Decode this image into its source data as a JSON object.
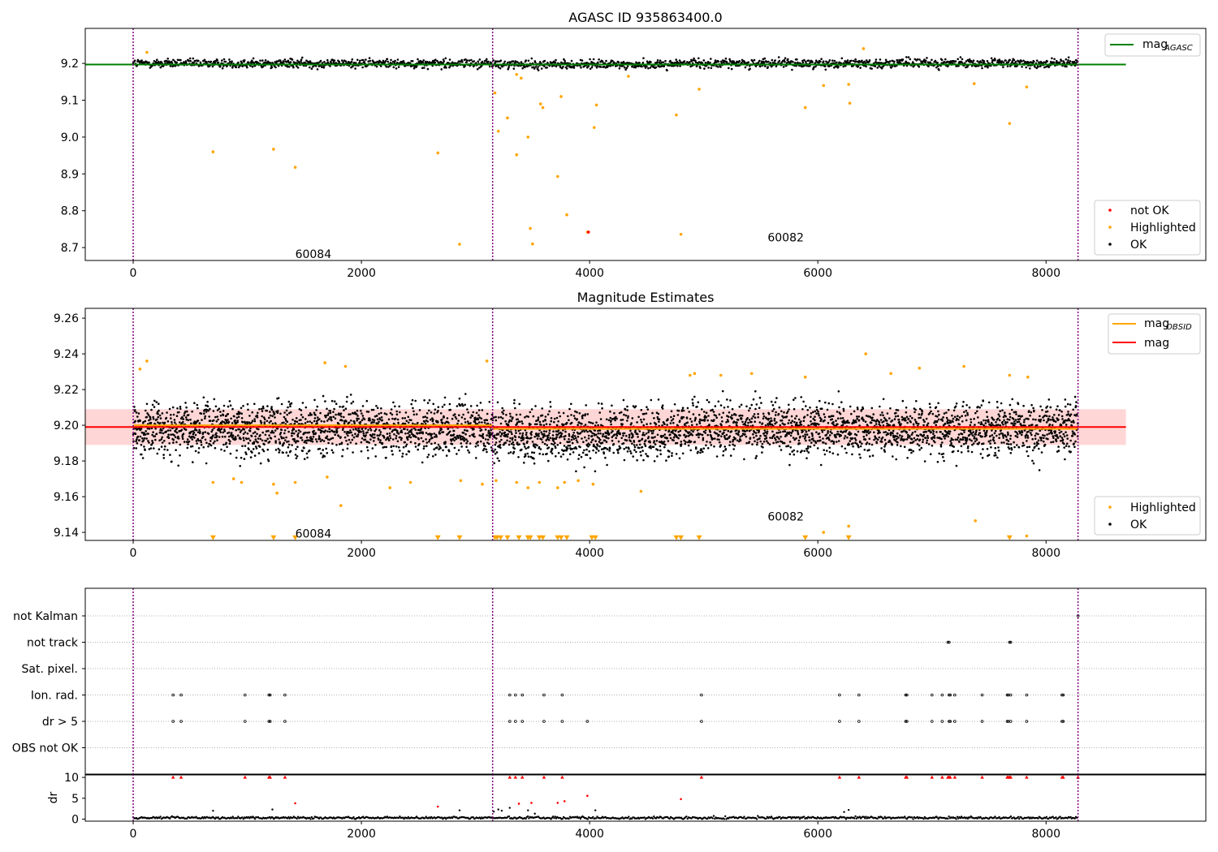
{
  "chart_data": [
    {
      "type": "scatter",
      "title": "AGASC ID 935863400.0",
      "xlabel": "",
      "ylabel": "",
      "xlim": [
        -420,
        9400
      ],
      "ylim": [
        8.665,
        9.295
      ],
      "xticks": [
        0,
        2000,
        4000,
        6000,
        8000
      ],
      "yticks": [
        8.7,
        8.8,
        8.9,
        9.0,
        9.1,
        9.2
      ],
      "ytick_labels": [
        "8.7",
        "8.8",
        "8.9",
        "9.0",
        "9.1",
        "9.2"
      ],
      "grid": false,
      "vlines": [
        0,
        3150,
        8280
      ],
      "annotations": [
        {
          "text": "60084",
          "x": 1420,
          "y": 8.68
        },
        {
          "text": "60082",
          "x": 5560,
          "y": 8.726
        }
      ],
      "reference_line": {
        "name": "mag",
        "subscript": "AGASC",
        "y": 9.197,
        "x": [
          -420,
          8700
        ],
        "color": "#008000"
      },
      "ok_band": {
        "center": 9.2,
        "spread": 0.011,
        "x": [
          0,
          8280
        ]
      },
      "highlighted": {
        "x": [
          120,
          700,
          1230,
          1420,
          2670,
          2860,
          3170,
          3200,
          3280,
          3360,
          3460,
          3480,
          3500,
          3570,
          3590,
          3720,
          3750,
          3800,
          3980,
          4040,
          4060,
          4760,
          4800,
          4960,
          5890,
          6050,
          6270,
          6280,
          7680,
          7830,
          7370,
          3360,
          3400,
          6400,
          4340
        ],
        "y": [
          9.23,
          8.96,
          8.967,
          8.918,
          8.957,
          8.709,
          9.12,
          9.016,
          9.052,
          8.952,
          9.0,
          8.752,
          8.71,
          9.09,
          9.08,
          8.893,
          9.11,
          8.789,
          8.742,
          9.026,
          9.087,
          9.06,
          8.736,
          9.13,
          9.08,
          9.14,
          9.143,
          9.092,
          9.037,
          9.136,
          9.145,
          9.17,
          9.16,
          9.24,
          9.165
        ]
      },
      "not_ok": {
        "x": [
          3990
        ],
        "y": [
          8.742
        ]
      },
      "legends": [
        {
          "position": "top-right",
          "entries": [
            {
              "label": "mag",
              "subscript": "AGASC",
              "color": "#008000",
              "kind": "line"
            }
          ]
        },
        {
          "position": "bottom-right",
          "entries": [
            {
              "label": "not OK",
              "color": "#ff0000",
              "kind": "dot"
            },
            {
              "label": "Highlighted",
              "color": "#ffa500",
              "kind": "dot"
            },
            {
              "label": "OK",
              "color": "#000000",
              "kind": "dot"
            }
          ]
        }
      ]
    },
    {
      "type": "scatter",
      "title": "Magnitude Estimates",
      "xlabel": "",
      "ylabel": "",
      "xlim": [
        -420,
        9400
      ],
      "ylim": [
        9.1355,
        9.2655
      ],
      "xticks": [
        0,
        2000,
        4000,
        6000,
        8000
      ],
      "yticks": [
        9.14,
        9.16,
        9.18,
        9.2,
        9.22,
        9.24,
        9.26
      ],
      "ytick_labels": [
        "9.14",
        "9.16",
        "9.18",
        "9.20",
        "9.22",
        "9.24",
        "9.26"
      ],
      "grid": false,
      "vlines": [
        0,
        3150,
        8280
      ],
      "annotations": [
        {
          "text": "60084",
          "x": 1420,
          "y": 9.139
        },
        {
          "text": "60082",
          "x": 5560,
          "y": 9.1484
        }
      ],
      "mag_line": {
        "name": "mag",
        "y": 9.199,
        "color": "#ff0000"
      },
      "mag_band": {
        "y": [
          9.189,
          9.209
        ],
        "x": [
          -420,
          8700
        ],
        "color": "#ffd6d6"
      },
      "obsid_segments": [
        {
          "x": [
            0,
            3150
          ],
          "y": 9.2
        },
        {
          "x": [
            3150,
            8280
          ],
          "y": 9.198
        }
      ],
      "ok_band": {
        "center": 9.198,
        "spread": 0.013,
        "x": [
          0,
          8280
        ]
      },
      "highlighted": {
        "x": [
          60,
          120,
          700,
          880,
          1230,
          1260,
          1420,
          1680,
          1820,
          1860,
          2250,
          2430,
          2870,
          3060,
          3100,
          3180,
          3360,
          3460,
          3560,
          3720,
          3780,
          3900,
          4030,
          4450,
          4880,
          4920,
          5150,
          5420,
          5890,
          6050,
          6270,
          6420,
          6640,
          6890,
          7280,
          7380,
          7830,
          7680,
          7840,
          950,
          1700
        ],
        "y": [
          9.2315,
          9.236,
          9.168,
          9.17,
          9.167,
          9.162,
          9.168,
          9.235,
          9.155,
          9.233,
          9.165,
          9.168,
          9.169,
          9.167,
          9.236,
          9.169,
          9.168,
          9.165,
          9.168,
          9.165,
          9.168,
          9.169,
          9.167,
          9.163,
          9.228,
          9.229,
          9.228,
          9.229,
          9.227,
          9.14,
          9.1435,
          9.24,
          9.229,
          9.232,
          9.233,
          9.1465,
          9.138,
          9.228,
          9.227,
          9.168,
          9.171
        ]
      },
      "off_scale_markers": {
        "x": [
          700,
          1230,
          1420,
          2670,
          2860,
          3170,
          3190,
          3220,
          3280,
          3380,
          3460,
          3480,
          3560,
          3590,
          3720,
          3750,
          3800,
          4020,
          4050,
          4760,
          4800,
          4960,
          5890,
          6270,
          7680
        ],
        "y": 9.137
      },
      "legends": [
        {
          "position": "top-right",
          "entries": [
            {
              "label": "mag",
              "subscript": "OBSID",
              "color": "#ffa500",
              "kind": "line"
            },
            {
              "label": "mag",
              "subscript": "",
              "color": "#ff0000",
              "kind": "line"
            }
          ]
        },
        {
          "position": "bottom-right",
          "entries": [
            {
              "label": "Highlighted",
              "color": "#ffa500",
              "kind": "dot"
            },
            {
              "label": "OK",
              "color": "#000000",
              "kind": "dot"
            }
          ]
        }
      ]
    },
    {
      "type": "scatter",
      "title": "",
      "xlabel": "",
      "ylabel": "",
      "xlim": [
        -420,
        9400
      ],
      "categories": [
        "not Kalman",
        "not track",
        "Sat. pixel.",
        "Ion. rad.",
        "dr > 5",
        "OBS not OK"
      ],
      "grid": true,
      "vlines": [
        0,
        3150,
        8280
      ],
      "flags": {
        "not Kalman": [
          8280
        ],
        "not track": [
          7140,
          7150,
          7680,
          7690
        ],
        "Sat. pixel.": [],
        "Ion. rad.": [
          350,
          420,
          980,
          1190,
          1200,
          1330,
          3300,
          3350,
          3410,
          3600,
          3760,
          4980,
          6190,
          6360,
          6770,
          6780,
          7000,
          7090,
          7150,
          7160,
          7200,
          7440,
          7660,
          7670,
          7690,
          7830,
          8140,
          8150
        ],
        "dr > 5": [
          350,
          420,
          980,
          1190,
          1200,
          1330,
          3300,
          3350,
          3410,
          3600,
          3760,
          3980,
          4980,
          6190,
          6360,
          6770,
          6780,
          7000,
          7090,
          7150,
          7160,
          7200,
          7440,
          7660,
          7670,
          7690,
          7830,
          8140,
          8150
        ],
        "OBS not OK": []
      }
    },
    {
      "type": "scatter",
      "title": "",
      "xlabel": "",
      "ylabel": "dr",
      "xlim": [
        -420,
        9400
      ],
      "ylim": [
        -0.5,
        10.8
      ],
      "yticks": [
        0,
        5,
        10
      ],
      "ytick_labels": [
        "0",
        "5",
        "10"
      ],
      "xticks": [
        0,
        2000,
        4000,
        6000,
        8000
      ],
      "grid": false,
      "vlines": [
        0,
        3150,
        8280
      ],
      "capped_value": 10,
      "capped_x": [
        350,
        420,
        980,
        1190,
        1200,
        1330,
        3300,
        3350,
        3410,
        3600,
        3760,
        4980,
        6190,
        6360,
        6770,
        6780,
        7000,
        7090,
        7140,
        7150,
        7160,
        7200,
        7440,
        7660,
        7670,
        7680,
        7690,
        7830,
        8140,
        8150,
        8280
      ],
      "outliers_red": {
        "x": [
          1420,
          2670,
          3380,
          3490,
          3720,
          3780,
          3980,
          4800
        ],
        "y": [
          3.8,
          3.0,
          3.7,
          3.9,
          3.9,
          4.3,
          5.6,
          4.8
        ]
      },
      "outliers_black": {
        "x": [
          700,
          1220,
          2860,
          3160,
          3200,
          3230,
          3300,
          3460,
          3520,
          4050,
          6230,
          6270
        ],
        "y": [
          2.0,
          2.3,
          2.1,
          1.8,
          2.3,
          2.0,
          2.7,
          2.1,
          1.3,
          2.1,
          1.7,
          2.2
        ]
      },
      "baseline": {
        "center": 0.3,
        "spread": 0.25
      }
    }
  ],
  "legend_labels": {
    "ax1_line": "mag",
    "ax1_line_sub": "AGASC",
    "ax1_notok": "not OK",
    "ax1_high": "Highlighted",
    "ax1_ok": "OK",
    "ax2_line1": "mag",
    "ax2_line1_sub": "OBSID",
    "ax2_line2": "mag",
    "ax2_high": "Highlighted",
    "ax2_ok": "OK"
  },
  "colors": {
    "ok": "#000000",
    "highlighted": "#ffa500",
    "not_ok": "#ff0000",
    "vline": "#800080",
    "agasc": "#008000",
    "mag": "#ff0000",
    "obsid": "#ffa500",
    "band": "#ffd6d6",
    "gridline": "#b0b0b0"
  }
}
